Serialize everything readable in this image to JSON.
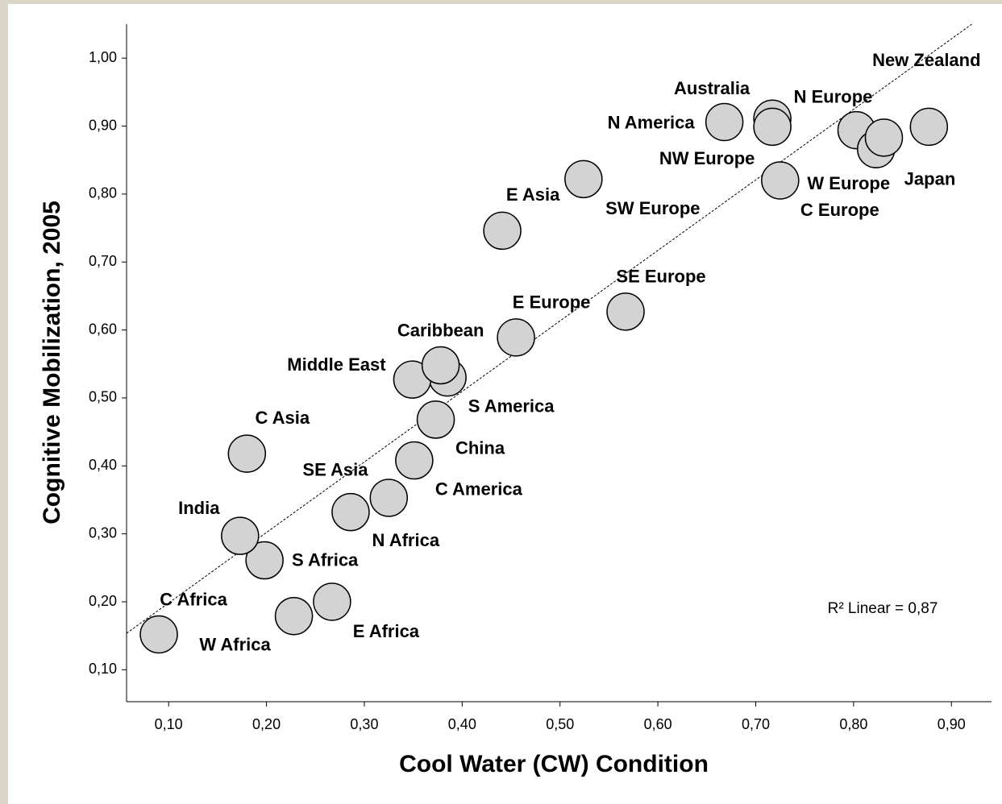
{
  "chart_data": {
    "type": "scatter",
    "xlabel": "Cool Water (CW) Condition",
    "ylabel": "Cognitive Mobilization, 2005",
    "annotation": "R² Linear = 0,87",
    "color": "#d3d3d3",
    "trendline": true,
    "xlim": [
      0.057,
      0.941
    ],
    "ylim": [
      0.053,
      1.05
    ],
    "xticks": [
      {
        "value": 0.1,
        "label": "0,10"
      },
      {
        "value": 0.2,
        "label": "0,20"
      },
      {
        "value": 0.3,
        "label": "0,30"
      },
      {
        "value": 0.4,
        "label": "0,40"
      },
      {
        "value": 0.5,
        "label": "0,50"
      },
      {
        "value": 0.6,
        "label": "0,60"
      },
      {
        "value": 0.7,
        "label": "0,70"
      },
      {
        "value": 0.8,
        "label": "0,80"
      },
      {
        "value": 0.9,
        "label": "0,90"
      }
    ],
    "yticks": [
      {
        "value": 0.1,
        "label": "0,10"
      },
      {
        "value": 0.2,
        "label": "0,20"
      },
      {
        "value": 0.3,
        "label": "0,30"
      },
      {
        "value": 0.4,
        "label": "0,40"
      },
      {
        "value": 0.5,
        "label": "0,50"
      },
      {
        "value": 0.6,
        "label": "0,60"
      },
      {
        "value": 0.7,
        "label": "0,70"
      },
      {
        "value": 0.8,
        "label": "0,80"
      },
      {
        "value": 0.9,
        "label": "0,90"
      },
      {
        "value": 1.0,
        "label": "1,00"
      }
    ],
    "labels": [
      "C Africa",
      "W Africa",
      "E Africa",
      "S Africa",
      "India",
      "C Asia",
      "SE Asia",
      "N Africa",
      "C America",
      "China",
      "S America",
      "Middle East",
      "Caribbean",
      "E Europe",
      "SE Europe",
      "E Asia",
      "SW Europe",
      "N America",
      "Australia",
      "NW Europe",
      "C Europe",
      "N Europe",
      "W Europe",
      "Japan",
      "New Zealand"
    ],
    "x": [
      0.09,
      0.228,
      0.267,
      0.198,
      0.173,
      0.18,
      0.286,
      0.325,
      0.351,
      0.373,
      0.385,
      0.349,
      0.378,
      0.455,
      0.567,
      0.441,
      0.524,
      0.668,
      0.717,
      0.717,
      0.725,
      0.803,
      0.823,
      0.831,
      0.877
    ],
    "values": [
      0.152,
      0.179,
      0.2,
      0.261,
      0.297,
      0.418,
      0.332,
      0.353,
      0.408,
      0.468,
      0.53,
      0.527,
      0.548,
      0.589,
      0.627,
      0.746,
      0.822,
      0.906,
      0.911,
      0.899,
      0.82,
      0.894,
      0.866,
      0.883,
      0.899
    ]
  }
}
